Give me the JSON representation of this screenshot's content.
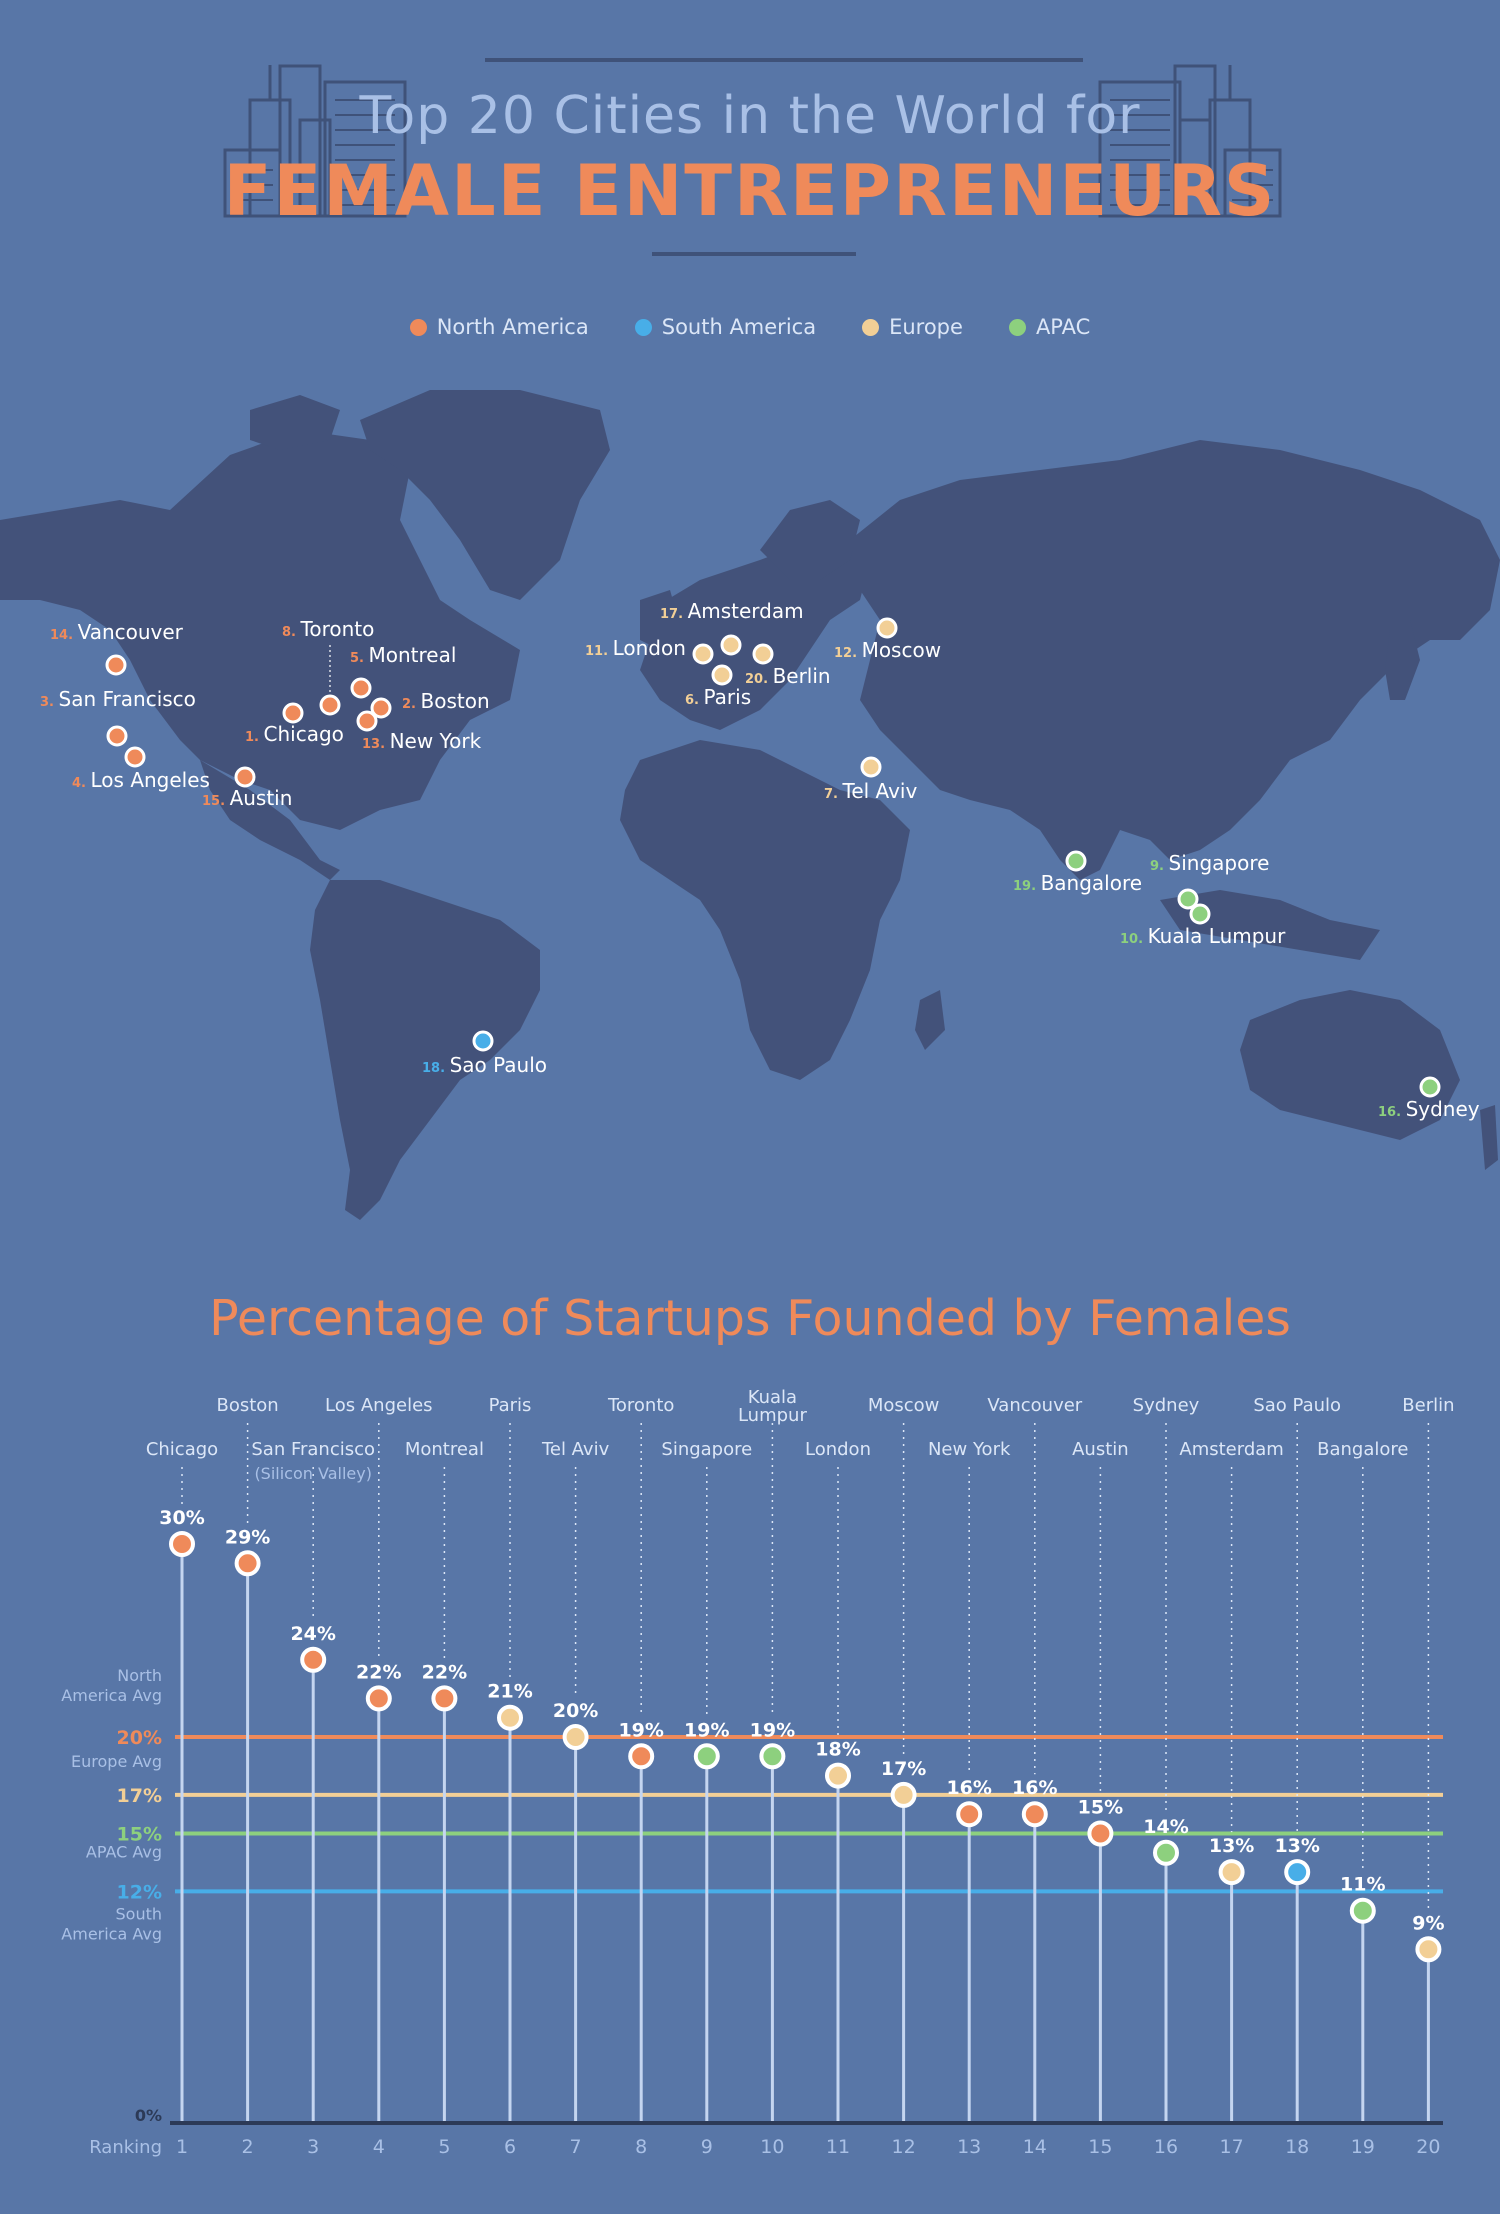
{
  "header": {
    "title_line1": "Top 20 Cities in the World for",
    "title_line2": "FEMALE ENTREPRENEURS"
  },
  "legend": [
    {
      "label": "North America",
      "color": "#ef8a5a"
    },
    {
      "label": "South America",
      "color": "#48aee8"
    },
    {
      "label": "Europe",
      "color": "#f2cf96"
    },
    {
      "label": "APAC",
      "color": "#8dd07e"
    }
  ],
  "map": {
    "cities": [
      {
        "rank": 1,
        "name": "Chicago",
        "region": "North America"
      },
      {
        "rank": 2,
        "name": "Boston",
        "region": "North America"
      },
      {
        "rank": 3,
        "name": "San Francisco",
        "region": "North America"
      },
      {
        "rank": 4,
        "name": "Los Angeles",
        "region": "North America"
      },
      {
        "rank": 5,
        "name": "Montreal",
        "region": "North America"
      },
      {
        "rank": 6,
        "name": "Paris",
        "region": "Europe"
      },
      {
        "rank": 7,
        "name": "Tel Aviv",
        "region": "Europe"
      },
      {
        "rank": 8,
        "name": "Toronto",
        "region": "North America"
      },
      {
        "rank": 9,
        "name": "Singapore",
        "region": "APAC"
      },
      {
        "rank": 10,
        "name": "Kuala Lumpur",
        "region": "APAC"
      },
      {
        "rank": 11,
        "name": "London",
        "region": "Europe"
      },
      {
        "rank": 12,
        "name": "Moscow",
        "region": "Europe"
      },
      {
        "rank": 13,
        "name": "New York",
        "region": "North America"
      },
      {
        "rank": 14,
        "name": "Vancouver",
        "region": "North America"
      },
      {
        "rank": 15,
        "name": "Austin",
        "region": "North America"
      },
      {
        "rank": 16,
        "name": "Sydney",
        "region": "APAC"
      },
      {
        "rank": 17,
        "name": "Amsterdam",
        "region": "Europe"
      },
      {
        "rank": 18,
        "name": "Sao Paulo",
        "region": "South America"
      },
      {
        "rank": 19,
        "name": "Bangalore",
        "region": "APAC"
      },
      {
        "rank": 20,
        "name": "Berlin",
        "region": "Europe"
      }
    ]
  },
  "chart_data": {
    "type": "scatter",
    "title": "Percentage of Startups Founded by Females",
    "xlabel": "Ranking",
    "x": [
      1,
      2,
      3,
      4,
      5,
      6,
      7,
      8,
      9,
      10,
      11,
      12,
      13,
      14,
      15,
      16,
      17,
      18,
      19,
      20
    ],
    "x_city_labels": [
      "Chicago",
      "Boston",
      "San Francisco",
      "Los Angeles",
      "Montreal",
      "Paris",
      "Tel Aviv",
      "Toronto",
      "Singapore",
      "Kuala Lumpur",
      "London",
      "Moscow",
      "New York",
      "Vancouver",
      "Austin",
      "Sydney",
      "Amsterdam",
      "Sao Paulo",
      "Bangalore",
      "Berlin"
    ],
    "x_city_sublabels": {
      "3": "(Silicon Valley)"
    },
    "regions": [
      "North America",
      "North America",
      "North America",
      "North America",
      "North America",
      "Europe",
      "Europe",
      "North America",
      "APAC",
      "APAC",
      "Europe",
      "Europe",
      "North America",
      "North America",
      "North America",
      "APAC",
      "Europe",
      "South America",
      "APAC",
      "Europe"
    ],
    "values": [
      30,
      29,
      24,
      22,
      22,
      21,
      20,
      19,
      19,
      19,
      18,
      17,
      16,
      16,
      15,
      14,
      13,
      13,
      11,
      9
    ],
    "value_labels": [
      "30%",
      "29%",
      "24%",
      "22%",
      "22%",
      "21%",
      "20%",
      "19%",
      "19%",
      "19%",
      "18%",
      "17%",
      "16%",
      "16%",
      "15%",
      "14%",
      "13%",
      "13%",
      "11%",
      "9%"
    ],
    "ylim": [
      0,
      30
    ],
    "zero_label": "0%",
    "averages": [
      {
        "name": "North America Avg",
        "value": 20,
        "label": "20%",
        "color": "#ef8a5a"
      },
      {
        "name": "Europe Avg",
        "value": 17,
        "label": "17%",
        "color": "#f2cf96"
      },
      {
        "name": "APAC Avg",
        "value": 15,
        "label": "15%",
        "color": "#8dd07e"
      },
      {
        "name": "South America Avg",
        "value": 12,
        "label": "12%",
        "color": "#48aee8"
      }
    ],
    "region_colors": {
      "North America": "#ef8a5a",
      "South America": "#48aee8",
      "Europe": "#f2cf96",
      "APAC": "#8dd07e"
    }
  }
}
